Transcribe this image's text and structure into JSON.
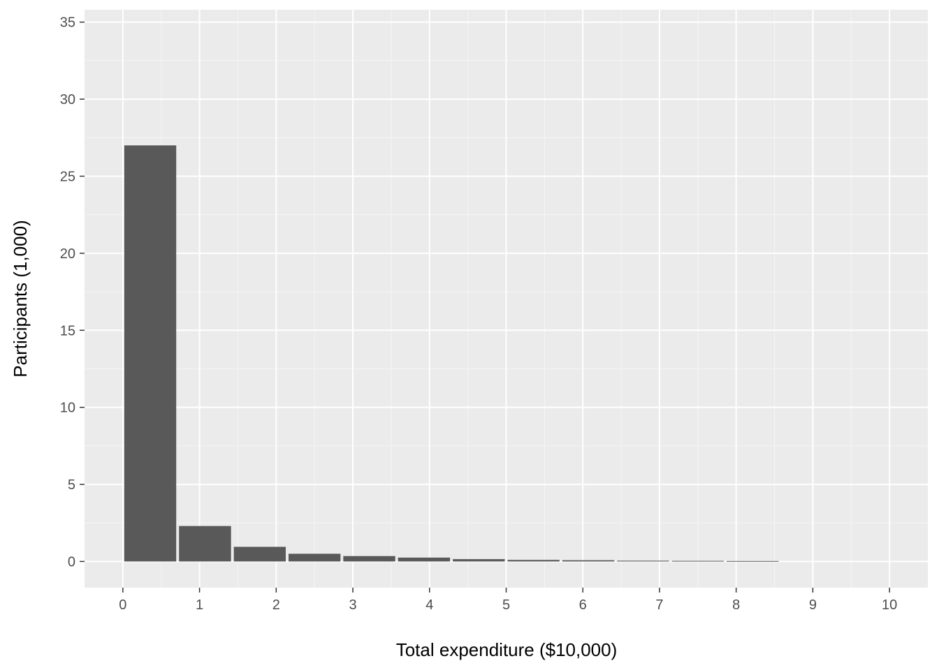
{
  "chart_data": {
    "type": "bar",
    "title": "",
    "xlabel": "Total expenditure ($10,000)",
    "ylabel": "Participants (1,000)",
    "xlim": [
      -0.5,
      10.5
    ],
    "ylim": [
      -1.7,
      35.8
    ],
    "x_ticks": [
      0,
      1,
      2,
      3,
      4,
      5,
      6,
      7,
      8,
      9,
      10
    ],
    "y_ticks": [
      0,
      5,
      10,
      15,
      20,
      25,
      30,
      35
    ],
    "bin_width": 0.714,
    "bars": [
      {
        "x0": 0.0,
        "x1": 0.714,
        "value": 27.0
      },
      {
        "x0": 0.714,
        "x1": 1.429,
        "value": 2.3
      },
      {
        "x0": 1.429,
        "x1": 2.143,
        "value": 0.95
      },
      {
        "x0": 2.143,
        "x1": 2.857,
        "value": 0.5
      },
      {
        "x0": 2.857,
        "x1": 3.571,
        "value": 0.35
      },
      {
        "x0": 3.571,
        "x1": 4.286,
        "value": 0.25
      },
      {
        "x0": 4.286,
        "x1": 5.0,
        "value": 0.15
      },
      {
        "x0": 5.0,
        "x1": 5.714,
        "value": 0.1
      },
      {
        "x0": 5.714,
        "x1": 6.429,
        "value": 0.08
      },
      {
        "x0": 6.429,
        "x1": 7.143,
        "value": 0.05
      },
      {
        "x0": 7.143,
        "x1": 7.857,
        "value": 0.04
      },
      {
        "x0": 7.857,
        "x1": 8.571,
        "value": 0.03
      }
    ],
    "grid": true,
    "legend": "none"
  },
  "colors": {
    "panel_background": "#ebebeb",
    "grid_major": "#ffffff",
    "grid_minor": "#f5f5f5",
    "bar_fill": "#595959",
    "tick_text": "#4d4d4d",
    "tick_mark": "#333333",
    "title_text": "#000000"
  }
}
